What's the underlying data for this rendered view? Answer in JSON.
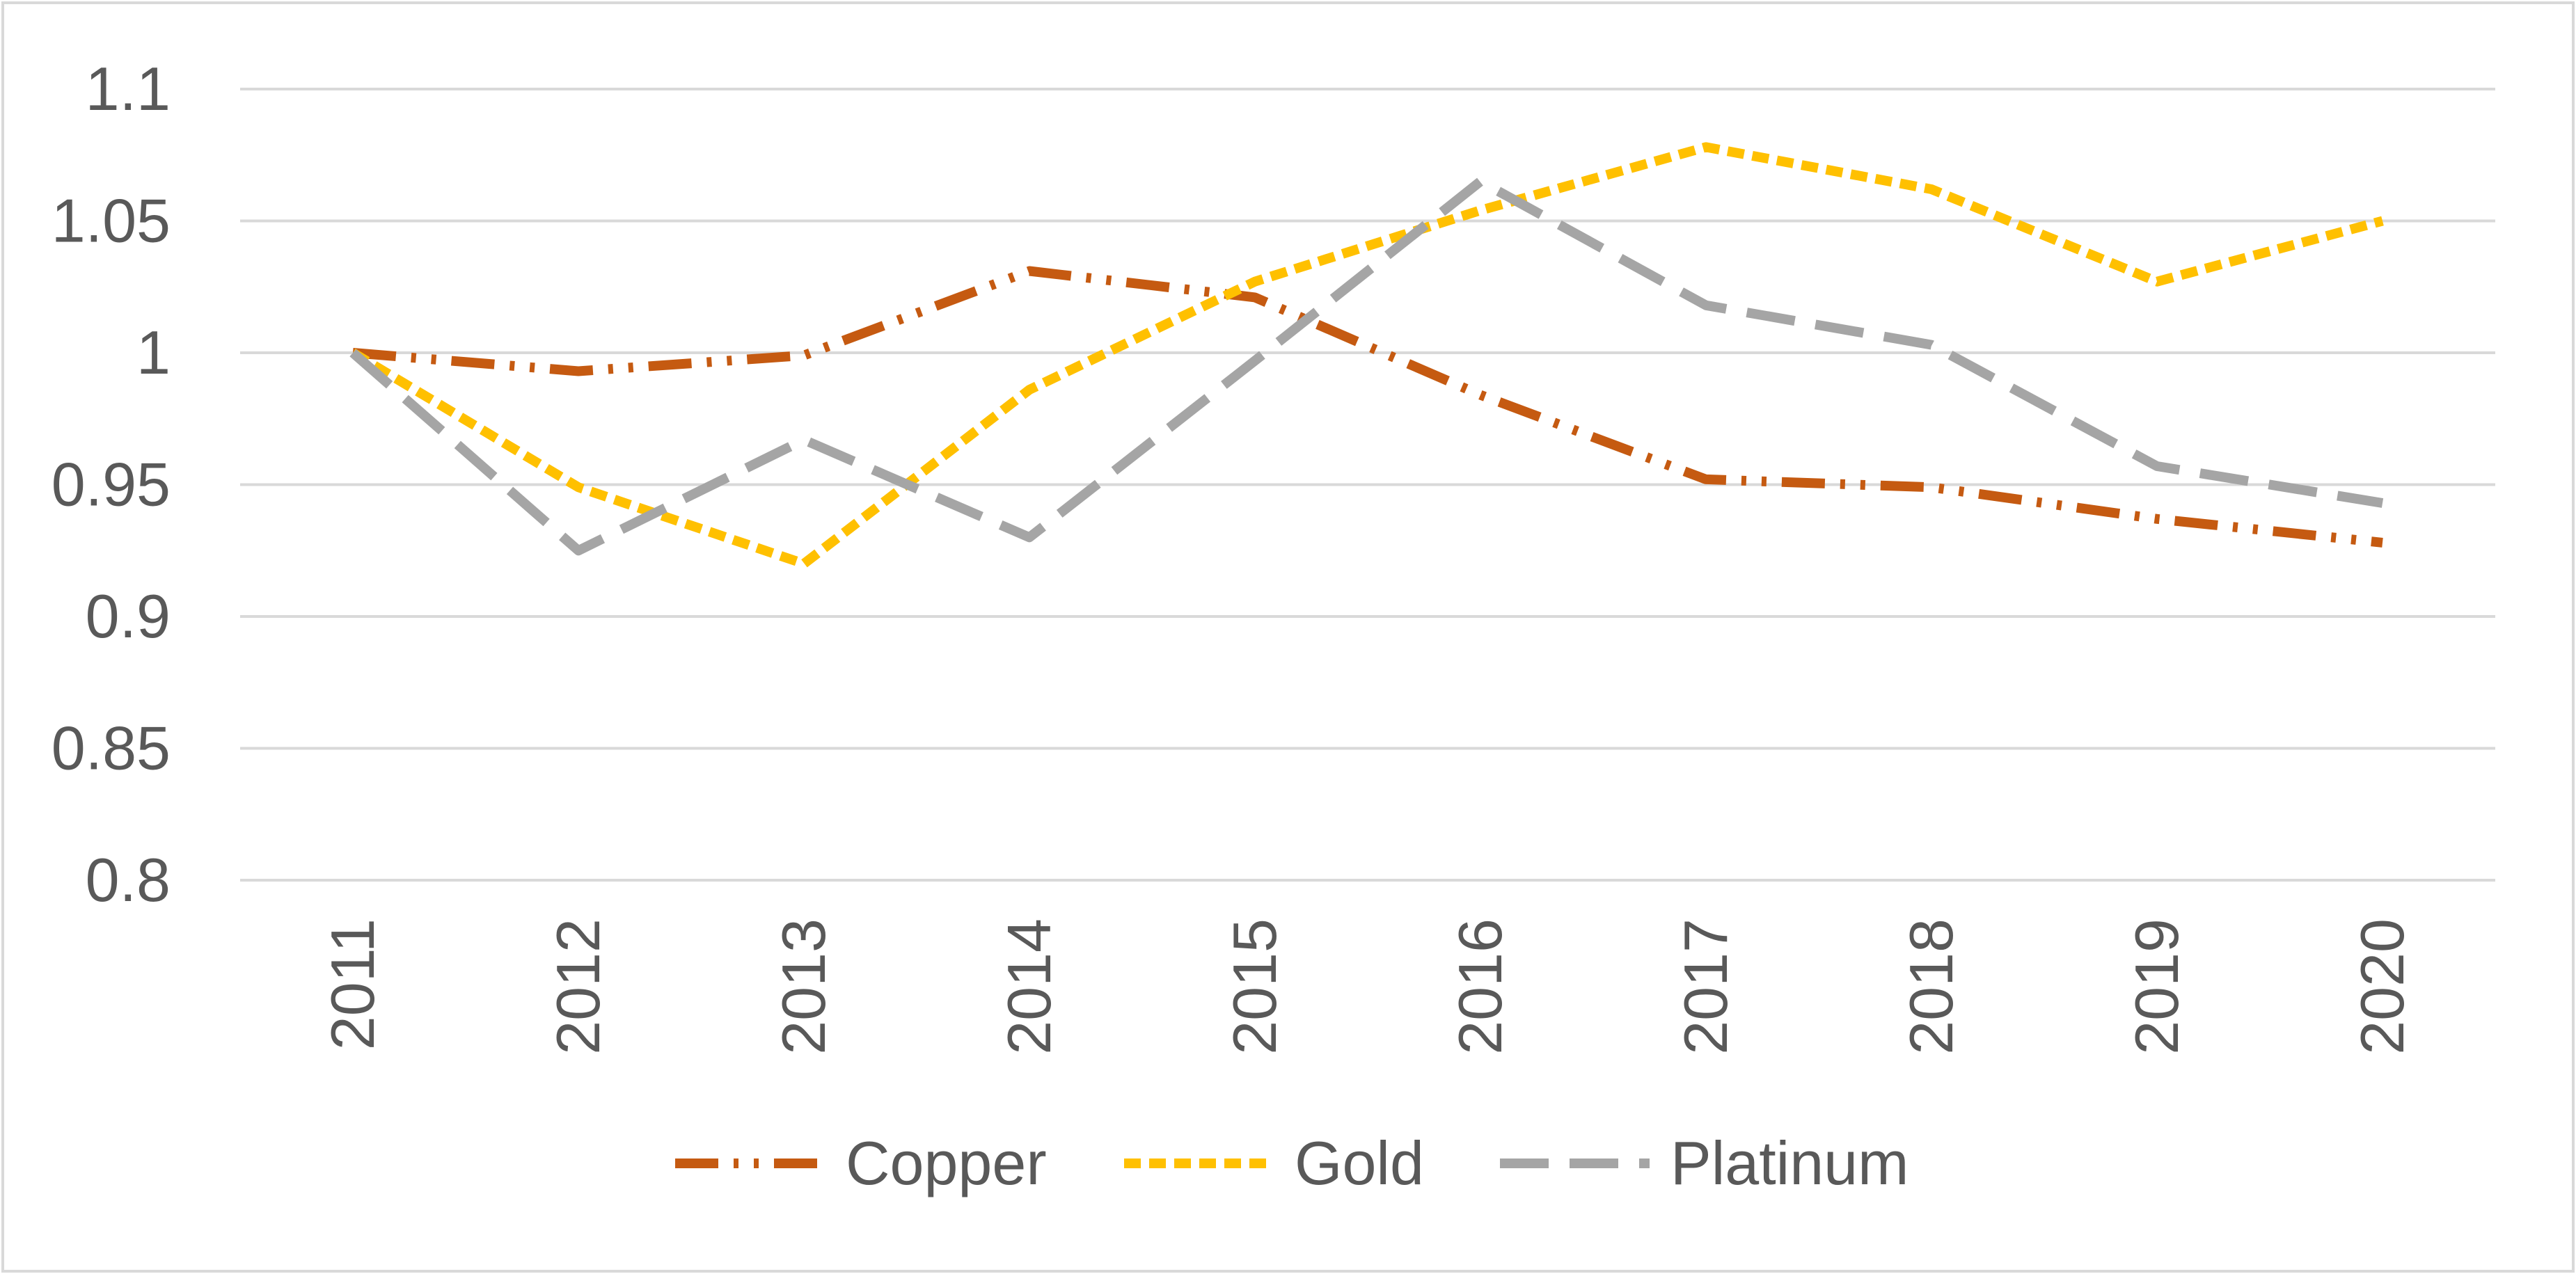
{
  "chart_data": {
    "type": "line",
    "title": "",
    "xlabel": "",
    "ylabel": "",
    "categories": [
      "2011",
      "2012",
      "2013",
      "2014",
      "2015",
      "2016",
      "2017",
      "2018",
      "2019",
      "2020"
    ],
    "ylim": [
      0.8,
      1.1
    ],
    "yticks": [
      "0.8",
      "0.85",
      "0.9",
      "0.95",
      "1",
      "1.05",
      "1.1"
    ],
    "grid": true,
    "legend_position": "bottom",
    "series": [
      {
        "name": "Copper",
        "color": "#C55A11",
        "style": "long-dash-dot-dot",
        "values": [
          1.0,
          0.993,
          0.999,
          1.031,
          1.021,
          0.984,
          0.952,
          0.949,
          0.937,
          0.928
        ]
      },
      {
        "name": "Gold",
        "color": "#FFC000",
        "style": "short-dash",
        "values": [
          1.0,
          0.949,
          0.92,
          0.986,
          1.027,
          1.054,
          1.078,
          1.062,
          1.027,
          1.05
        ]
      },
      {
        "name": "Platinum",
        "color": "#A5A5A5",
        "style": "long-dash",
        "values": [
          1.0,
          0.925,
          0.967,
          0.93,
          0.997,
          1.065,
          1.018,
          1.003,
          0.957,
          0.943
        ]
      }
    ]
  }
}
